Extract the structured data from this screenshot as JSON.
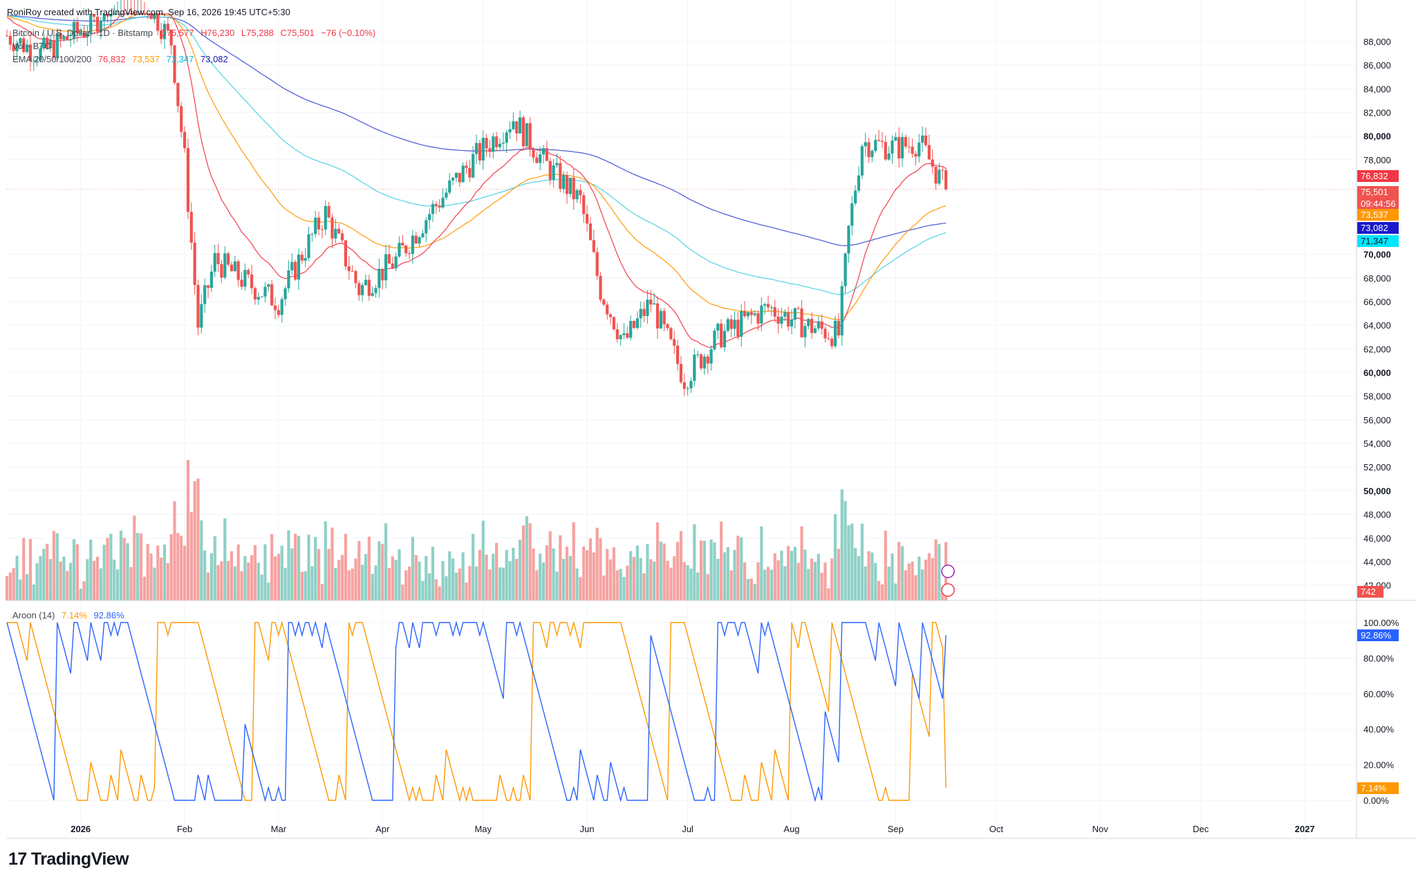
{
  "credit": "RoniRoy created with TradingView.com, Sep 16, 2026 19:45 UTC+5:30",
  "legend": {
    "symbol": "Bitcoin / U.S. Dollar · 1D · Bitstamp",
    "o": "O75,577",
    "h": "H76,230",
    "l": "L75,288",
    "c": "C75,501",
    "chg": "−76 (−0.10%)",
    "vol_label": "Vol · BTC",
    "ema_label": "EMA 20/50/100/200",
    "ema20": "76,832",
    "ema50": "73,537",
    "ema100": "71,347",
    "ema200": "73,082",
    "aroon_label": "Aroon (14)",
    "aroon_down": "7.14%",
    "aroon_up": "92.86%"
  },
  "price_tags": {
    "ema20": "76,832",
    "close": "75,501",
    "countdown": "09:44:56",
    "ema50": "73,537",
    "ema200": "73,082",
    "ema100": "71,347",
    "volume": "742",
    "aroon_up": "92.86%",
    "aroon_down": "7.14%"
  },
  "logo_text": "TradingView",
  "colors": {
    "up": "#26a69a",
    "down": "#ef5350",
    "ema20": "#f23645",
    "ema50": "#ff9800",
    "ema100": "#4dd0e1",
    "ema200": "#3f51d4",
    "aroon_up": "#2962ff",
    "aroon_down": "#ff9800"
  },
  "chart_data": {
    "type": "candlestick",
    "price_axis": [
      "88,000",
      "86,000",
      "84,000",
      "82,000",
      "80,000",
      "78,000",
      "70,000",
      "68,000",
      "66,000",
      "64,000",
      "62,000",
      "60,000",
      "58,000",
      "56,000",
      "54,000",
      "52,000",
      "50,000",
      "48,000",
      "46,000",
      "44,000",
      "42,000"
    ],
    "aroon_axis": [
      "100.00%",
      "80.00%",
      "60.00%",
      "40.00%",
      "20.00%",
      "0.00%"
    ],
    "x_ticks": [
      "2026",
      "Feb",
      "Mar",
      "Apr",
      "May",
      "Jun",
      "Jul",
      "Aug",
      "Sep",
      "Oct",
      "Nov",
      "Dec",
      "2027"
    ],
    "ohlc_anchors": [
      [
        "2025-12-10",
        88500
      ],
      [
        "2025-12-20",
        87000
      ],
      [
        "2026-01-05",
        89500
      ],
      [
        "2026-01-15",
        94000
      ],
      [
        "2026-01-28",
        88000
      ],
      [
        "2026-02-01",
        78000
      ],
      [
        "2026-02-05",
        64000
      ],
      [
        "2026-02-10",
        69500
      ],
      [
        "2026-02-20",
        67500
      ],
      [
        "2026-03-01",
        66000
      ],
      [
        "2026-03-08",
        70000
      ],
      [
        "2026-03-15",
        73500
      ],
      [
        "2026-03-25",
        67000
      ],
      [
        "2026-04-05",
        69500
      ],
      [
        "2026-04-15",
        73500
      ],
      [
        "2026-04-28",
        78000
      ],
      [
        "2026-05-10",
        81500
      ],
      [
        "2026-05-20",
        77500
      ],
      [
        "2026-05-30",
        74500
      ],
      [
        "2026-06-05",
        67000
      ],
      [
        "2026-06-12",
        62500
      ],
      [
        "2026-06-20",
        66000
      ],
      [
        "2026-06-30",
        59500
      ],
      [
        "2026-07-10",
        63000
      ],
      [
        "2026-07-25",
        65500
      ],
      [
        "2026-08-05",
        64000
      ],
      [
        "2026-08-15",
        63200
      ],
      [
        "2026-08-18",
        72000
      ],
      [
        "2026-08-22",
        79500
      ],
      [
        "2026-09-01",
        79000
      ],
      [
        "2026-09-08",
        79500
      ],
      [
        "2026-09-16",
        75501
      ]
    ],
    "last_close": 75501,
    "ema": {
      "ema20": 76832,
      "ema50": 73537,
      "ema100": 71347,
      "ema200": 73082
    },
    "aroon": {
      "up": 92.86,
      "down": 7.14
    }
  }
}
